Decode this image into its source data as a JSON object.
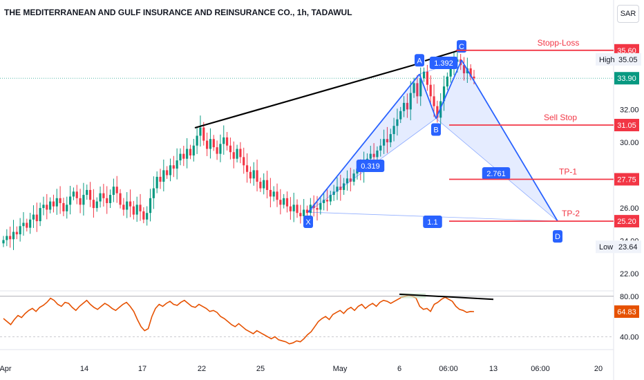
{
  "header": {
    "title": "THE MEDITERRANEAN AND GULF INSURANCE AND REINSURANCE CO., 1h, TADAWUL",
    "currency": "SAR"
  },
  "colors": {
    "up": "#089981",
    "down": "#f23645",
    "pattern_line": "#2962ff",
    "pattern_fill": "#2962ff",
    "level_line": "#f23645",
    "trend_line": "#000000",
    "rsi_line": "#e65100",
    "current_price": "#089981"
  },
  "chart_data": [
    {
      "type": "candlestick",
      "title": "",
      "price_ylim": [
        21.0,
        37.4
      ],
      "y_ticks": [
        "32.00",
        "30.00",
        "26.00",
        "24.00",
        "22.00"
      ],
      "x_ticks": [
        "Apr",
        "14",
        "17",
        "22",
        "25",
        "May",
        "6",
        "06:00",
        "13",
        "06:00",
        "20"
      ],
      "close_series": [
        24.05,
        24.3,
        24.1,
        24.55,
        24.4,
        24.9,
        25.1,
        24.8,
        25.3,
        25.6,
        25.2,
        26.0,
        26.2,
        25.9,
        26.4,
        26.1,
        26.6,
        26.3,
        25.8,
        26.2,
        26.7,
        27.0,
        26.6,
        26.2,
        26.8,
        27.1,
        26.5,
        26.0,
        26.4,
        26.9,
        26.6,
        26.3,
        26.8,
        27.3,
        26.9,
        26.2,
        25.9,
        26.4,
        26.1,
        25.6,
        26.2,
        25.8,
        25.3,
        25.7,
        26.6,
        27.2,
        27.9,
        27.6,
        28.3,
        28.0,
        28.6,
        28.4,
        28.9,
        29.3,
        29.0,
        29.6,
        29.2,
        29.8,
        30.4,
        30.9,
        30.1,
        29.6,
        30.2,
        29.7,
        29.3,
        29.9,
        30.3,
        29.8,
        29.4,
        29.0,
        29.6,
        29.1,
        28.6,
        28.2,
        27.8,
        28.3,
        27.6,
        27.2,
        27.7,
        27.1,
        26.7,
        27.0,
        26.5,
        26.2,
        26.6,
        26.1,
        25.8,
        26.2,
        25.7,
        25.5,
        25.9,
        25.7,
        26.2,
        26.0,
        25.9,
        26.3,
        26.5,
        26.4,
        26.8,
        27.0,
        27.3,
        27.1,
        27.5,
        27.8,
        27.6,
        28.1,
        28.4,
        28.2,
        28.7,
        29.0,
        29.3,
        29.1,
        29.5,
        29.8,
        30.2,
        30.0,
        30.5,
        31.0,
        31.4,
        31.9,
        32.4,
        32.0,
        33.0,
        33.6,
        32.8,
        33.9,
        34.3,
        33.5,
        32.8,
        32.2,
        31.5,
        32.5,
        33.4,
        34.0,
        34.6,
        34.9,
        35.05,
        34.7,
        34.2,
        34.5,
        34.0,
        33.9
      ],
      "levels": [
        {
          "label": "Stopp-Loss",
          "value": "35.60"
        },
        {
          "label": "Sell Stop",
          "value": "31.05"
        },
        {
          "label": "TP-1",
          "value": "27.75"
        },
        {
          "label": "TP-2",
          "value": "25.20"
        }
      ],
      "current_price": "33.90",
      "high": {
        "label": "High",
        "value": "35.05"
      },
      "low": {
        "label": "Low",
        "value": "23.64"
      },
      "pattern": {
        "points": [
          {
            "label": "X",
            "value": 25.75
          },
          {
            "label": "A",
            "value": 34.15
          },
          {
            "label": "B",
            "value": 31.45
          },
          {
            "label": "C",
            "value": 35.0
          },
          {
            "label": "D",
            "value": 25.2
          }
        ],
        "ratios": [
          "0.319",
          "1.392",
          "2.761",
          "1.1"
        ]
      }
    },
    {
      "type": "line",
      "title": "",
      "name": "",
      "ylim": [
        28,
        86
      ],
      "y_ticks": [
        "80.00",
        "40.00"
      ],
      "current_value": "64.83",
      "values": [
        58,
        55,
        52,
        57,
        61,
        59,
        63,
        66,
        68,
        65,
        69,
        71,
        74,
        78,
        76,
        72,
        70,
        74,
        73,
        69,
        66,
        70,
        73,
        76,
        72,
        69,
        67,
        70,
        73,
        71,
        68,
        66,
        69,
        72,
        74,
        70,
        65,
        57,
        50,
        46,
        48,
        60,
        68,
        72,
        70,
        73,
        75,
        72,
        71,
        74,
        76,
        73,
        70,
        69,
        72,
        70,
        68,
        65,
        66,
        64,
        60,
        58,
        55,
        52,
        50,
        53,
        50,
        47,
        45,
        43,
        46,
        44,
        42,
        40,
        38,
        40,
        37,
        36,
        35,
        33,
        34,
        36,
        35,
        38,
        42,
        45,
        50,
        55,
        58,
        60,
        57,
        62,
        64,
        66,
        63,
        67,
        69,
        66,
        70,
        72,
        68,
        71,
        73,
        70,
        74,
        76,
        75,
        73,
        75,
        77,
        79,
        80,
        81,
        80,
        78,
        70,
        67,
        68,
        65,
        72,
        74,
        77,
        79,
        77,
        75,
        70,
        67,
        66,
        64,
        65,
        64.83
      ]
    }
  ]
}
